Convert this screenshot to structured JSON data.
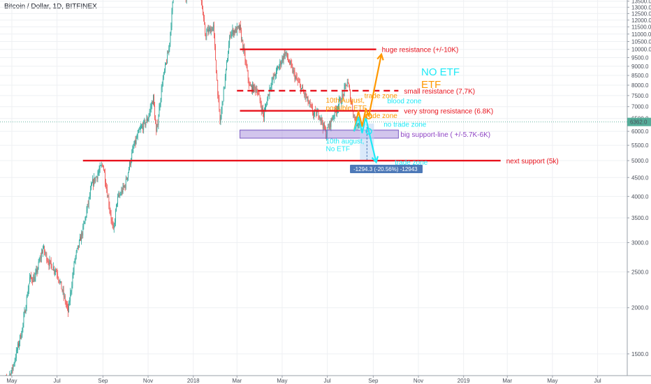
{
  "chart_data": {
    "type": "candlestick",
    "title": "Bitcoin / Dollar, 1D, BITFINEX",
    "symbol": "Bitcoin / Dollar",
    "interval": "1D",
    "exchange": "BITFINEX",
    "y_axis": {
      "scale": "log",
      "ylim": [
        1310,
        13600
      ],
      "ticks": [
        1500,
        2000,
        2500,
        3000,
        3500,
        4000,
        4500,
        5000,
        5500,
        6000,
        6500,
        7000,
        7500,
        8000,
        8500,
        9000,
        9500,
        10000,
        10500,
        11000,
        11500,
        12000,
        12500,
        13000,
        13500
      ],
      "tick_labels": [
        "1500.0",
        "2000.0",
        "2500.0",
        "3000.0",
        "3500.0",
        "4000.0",
        "4500.0",
        "5000.0",
        "5500.0",
        "6000.0",
        "6500.0",
        "7000.0",
        "7500.0",
        "8000.0",
        "8500.0",
        "9000.0",
        "9500.0",
        "10000.0",
        "10500.0",
        "11000.0",
        "11500.0",
        "12000.0",
        "12500.0",
        "13000.0",
        "13500.0"
      ],
      "position": "right"
    },
    "x_axis": {
      "range": [
        "2017-04-15",
        "2019-08-10"
      ],
      "tick_dates": [
        "2017-05-01",
        "2017-07-01",
        "2017-09-01",
        "2017-11-01",
        "2018-01-01",
        "2018-03-01",
        "2018-05-01",
        "2018-07-01",
        "2018-09-01",
        "2018-11-01",
        "2019-01-01",
        "2019-03-01",
        "2019-05-01",
        "2019-07-01"
      ],
      "tick_labels": [
        "May",
        "Jul",
        "Sep",
        "Nov",
        "2018",
        "Mar",
        "May",
        "Jul",
        "Sep",
        "Nov",
        "2019",
        "Mar",
        "May",
        "Jul"
      ]
    },
    "grid": true,
    "colors": {
      "up": "#26a69a",
      "down": "#ef5350",
      "resistance": "#e8121c",
      "etf": "#ff9800",
      "no_etf": "#1de9f6",
      "support_zone": "#9c7fd6",
      "label_bg": "#4d79b8",
      "price_badge": "#55ad99"
    },
    "last_price": {
      "value": 6362,
      "label": "6362.0"
    },
    "price_path": [
      [
        "2017-04-15",
        1180
      ],
      [
        "2017-05-01",
        1350
      ],
      [
        "2017-05-15",
        1750
      ],
      [
        "2017-05-25",
        2400
      ],
      [
        "2017-06-01",
        2400
      ],
      [
        "2017-06-12",
        2900
      ],
      [
        "2017-06-20",
        2650
      ],
      [
        "2017-07-01",
        2500
      ],
      [
        "2017-07-16",
        1950
      ],
      [
        "2017-07-25",
        2700
      ],
      [
        "2017-08-05",
        3250
      ],
      [
        "2017-08-17",
        4300
      ],
      [
        "2017-09-01",
        4900
      ],
      [
        "2017-09-15",
        3200
      ],
      [
        "2017-09-20",
        3900
      ],
      [
        "2017-10-01",
        4300
      ],
      [
        "2017-10-12",
        5400
      ],
      [
        "2017-10-20",
        6000
      ],
      [
        "2017-10-31",
        6450
      ],
      [
        "2017-11-08",
        7400
      ],
      [
        "2017-11-12",
        5900
      ],
      [
        "2017-11-20",
        8100
      ],
      [
        "2017-11-29",
        10000
      ],
      [
        "2017-12-07",
        15500
      ],
      [
        "2017-12-17",
        19500
      ],
      [
        "2017-12-22",
        14000
      ],
      [
        "2018-01-06",
        17000
      ],
      [
        "2018-01-17",
        11000
      ],
      [
        "2018-01-28",
        11500
      ],
      [
        "2018-02-06",
        6300
      ],
      [
        "2018-02-20",
        11100
      ],
      [
        "2018-03-05",
        11400
      ],
      [
        "2018-03-18",
        7900
      ],
      [
        "2018-03-28",
        7800
      ],
      [
        "2018-04-06",
        6600
      ],
      [
        "2018-04-15",
        8000
      ],
      [
        "2018-05-05",
        9800
      ],
      [
        "2018-05-20",
        8300
      ],
      [
        "2018-06-01",
        7500
      ],
      [
        "2018-06-12",
        6700
      ],
      [
        "2018-06-20",
        6700
      ],
      [
        "2018-06-29",
        5900
      ],
      [
        "2018-07-10",
        6700
      ],
      [
        "2018-07-22",
        7500
      ],
      [
        "2018-07-28",
        8200
      ],
      [
        "2018-08-08",
        6300
      ],
      [
        "2018-08-13",
        6362
      ]
    ],
    "horizontal_lines": [
      {
        "price": 10000,
        "from": "2018-03-05",
        "to": "2018-09-05",
        "style": "solid",
        "label": "huge resistance (+/-10K)"
      },
      {
        "price": 7730,
        "from": "2018-03-01",
        "to": "2018-10-05",
        "style": "dashed",
        "label": "small resistance (7,7K)"
      },
      {
        "price": 6820,
        "from": "2018-03-05",
        "to": "2018-10-05",
        "style": "solid",
        "label": "very strong resistance (6.8K)"
      },
      {
        "price": 5000,
        "from": "2017-08-05",
        "to": "2019-02-20",
        "style": "solid",
        "label": "next support (5k)"
      }
    ],
    "support_zone": {
      "low": 5750,
      "high": 6050,
      "from": "2018-03-05",
      "to": "2018-10-05",
      "label": "big support-line ( +/-5.7K-6K)"
    },
    "measure": {
      "from_price": 6300,
      "to_price": 5000,
      "label": "-1294.3 (-20.56%) -12943"
    },
    "projections": {
      "etf": {
        "points": [
          [
            "2018-08-06",
            6000
          ],
          [
            "2018-08-12",
            6800
          ],
          [
            "2018-08-17",
            6200
          ],
          [
            "2018-08-22",
            6900
          ],
          [
            "2018-08-26",
            6600
          ],
          [
            "2018-09-12",
            9700
          ]
        ],
        "labels": [
          "10th August,",
          "possible ETF"
        ]
      },
      "no_etf": {
        "points": [
          [
            "2018-08-06",
            6000
          ],
          [
            "2018-08-12",
            6550
          ],
          [
            "2018-08-17",
            5950
          ],
          [
            "2018-08-22",
            6550
          ],
          [
            "2018-08-26",
            6000
          ],
          [
            "2018-09-05",
            4950
          ]
        ],
        "labels": [
          "10th august,",
          "No ETF"
        ]
      }
    },
    "annotations": [
      "trade zone",
      "blood zone",
      "trade zone",
      "no trade zone",
      "trade zone"
    ],
    "legend": {
      "items": [
        {
          "name": "NO ETF",
          "color": "#1de9f6"
        },
        {
          "name": "ETF",
          "color": "#ff9800"
        }
      ],
      "placement": "top-right"
    }
  }
}
